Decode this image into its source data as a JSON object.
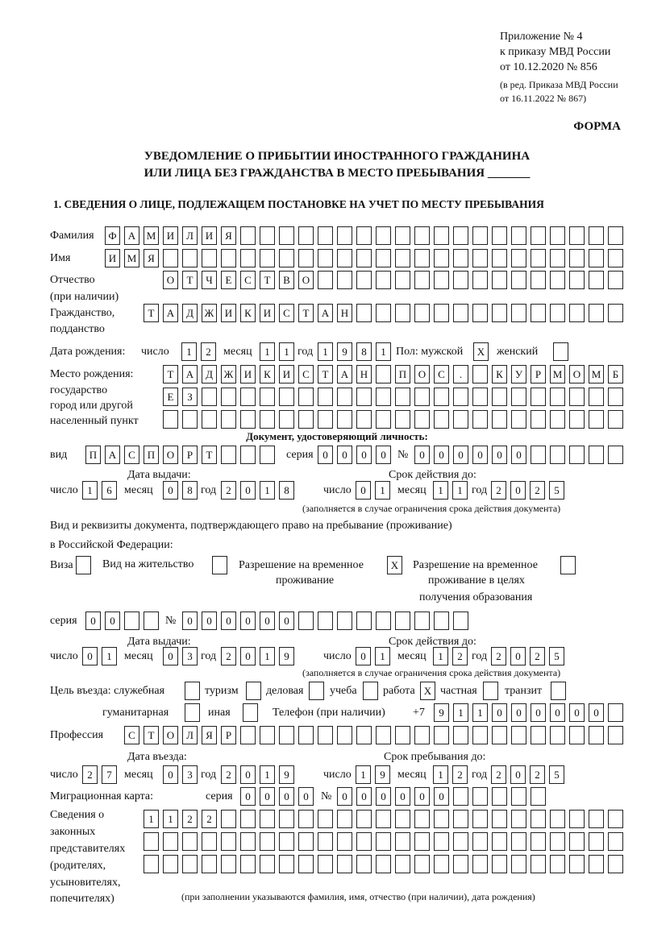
{
  "header": {
    "appendix": "Приложение № 4",
    "order_ref": "к приказу МВД России",
    "order_date": "от 10.12.2020 № 856",
    "amend_1": "(в ред. Приказа МВД России",
    "amend_2": "от 16.11.2022 № 867)",
    "form_label": "ФОРМА",
    "title_1": "УВЕДОМЛЕНИЕ О ПРИБЫТИИ ИНОСТРАННОГО ГРАЖДАНИНА",
    "title_2": "ИЛИ ЛИЦА БЕЗ ГРАЖДАНСТВА В МЕСТО ПРЕБЫВАНИЯ _______",
    "section_1": "1. СВЕДЕНИЯ О ЛИЦЕ, ПОДЛЕЖАЩЕМ ПОСТАНОВКЕ НА УЧЕТ ПО МЕСТУ ПРЕБЫВАНИЯ"
  },
  "person": {
    "surname_label": "Фамилия",
    "surname": "ФАМИЛИЯ",
    "name_label": "Имя",
    "name": "ИМЯ",
    "patronymic_label_1": "Отчество",
    "patronymic_label_2": "(при наличии)",
    "patronymic": "ОТЧЕСТВО",
    "citizenship_label_1": "Гражданство,",
    "citizenship_label_2": "подданство",
    "citizenship": "ТАДЖИКИСТАН",
    "birth_label": "Дата рождения:",
    "day_label": "число",
    "month_label": "месяц",
    "year_label": "год",
    "birth_day": "12",
    "birth_month": "11",
    "birth_year": "1981",
    "sex_label": "Пол: мужской",
    "female_label": "женский",
    "sex_male": "X",
    "sex_female": "",
    "birthplace_label_1": "Место рождения:",
    "birthplace_label_2": "государство",
    "birthplace_label_3": "город или другой",
    "birthplace_label_4": "населенный пункт",
    "birthplace": "ТАДЖИКИСТАН ПОС. КУРМОМБЕЗ"
  },
  "id_doc": {
    "heading": "Документ, удостоверяющий личность:",
    "type_label": "вид",
    "type": "ПАСПОРТ",
    "series_label": "серия",
    "series": "0000",
    "number_label": "№",
    "number": "000000",
    "issue_label": "Дата выдачи:",
    "expiry_label": "Срок действия до:",
    "day_label": "число",
    "month_label": "месяц",
    "year_label": "год",
    "issue_day": "16",
    "issue_month": "08",
    "issue_year": "2018",
    "exp_day": "01",
    "exp_month": "11",
    "exp_year": "2025",
    "note": "(заполняется в случае ограничения срока действия документа)"
  },
  "stay_doc": {
    "heading_1": "Вид и реквизиты документа, подтверждающего право на пребывание (проживание)",
    "heading_2": "в Российской Федерации:",
    "visa_label": "Виза",
    "visa": "",
    "residence_label": "Вид на жительство",
    "residence": "",
    "trp_label_1": "Разрешение на временное",
    "trp_label_2": "проживание",
    "trp": "X",
    "trp_edu_label_1": "Разрешение на временное",
    "trp_edu_label_2": "проживание в целях",
    "trp_edu_label_3": "получения образования",
    "trp_edu": "",
    "series_label": "серия",
    "series": "00",
    "number_label": "№",
    "number": "000000",
    "issue_label": "Дата выдачи:",
    "expiry_label": "Срок действия до:",
    "day_label": "число",
    "month_label": "месяц",
    "year_label": "год",
    "issue_day": "01",
    "issue_month": "03",
    "issue_year": "2019",
    "exp_day": "01",
    "exp_month": "12",
    "exp_year": "2025",
    "note": "(заполняется в случае ограничения срока действия документа)"
  },
  "purpose": {
    "label": "Цель въезда: служебная",
    "options": [
      {
        "label": "",
        "mark": ""
      },
      {
        "label": "туризм",
        "mark": ""
      },
      {
        "label": "деловая",
        "mark": ""
      },
      {
        "label": "учеба",
        "mark": ""
      },
      {
        "label": "работа",
        "mark": "X"
      },
      {
        "label": "частная",
        "mark": ""
      },
      {
        "label": "транзит",
        "mark": ""
      },
      {
        "label": "гуманитарная",
        "mark": ""
      },
      {
        "label": "иная",
        "mark": ""
      }
    ],
    "phone_label": "Телефон (при наличии)",
    "phone_prefix": "+7",
    "phone": "911000000"
  },
  "profession": {
    "label": "Профессия",
    "value": "СТОЛЯР"
  },
  "entry": {
    "entry_label": "Дата въезда:",
    "stay_label": "Срок пребывания до:",
    "day_label": "число",
    "month_label": "месяц",
    "year_label": "год",
    "entry_day": "27",
    "entry_month": "03",
    "entry_year": "2019",
    "stay_day": "19",
    "stay_month": "12",
    "stay_year": "2025"
  },
  "migration_card": {
    "label": "Миграционная карта:",
    "series_label": "серия",
    "series": "0000",
    "number_label": "№",
    "number": "000000"
  },
  "representatives": {
    "label_1": "Сведения о",
    "label_2": "законных",
    "label_3": "представителях",
    "label_4": "(родителях,",
    "label_5": "усыновителях,",
    "label_6": "попечителях)",
    "value": "1122",
    "note": "(при заполнении указываются фамилия, имя, отчество (при наличии), дата рождения)"
  }
}
